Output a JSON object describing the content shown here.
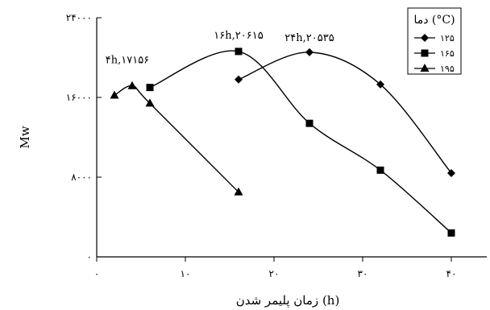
{
  "chart_data": {
    "type": "line",
    "xlabel": "زمان پلیمر شدن (h)",
    "ylabel": "Mw",
    "xlim": [
      0,
      44
    ],
    "ylim": [
      0,
      24000
    ],
    "xticks": [
      0,
      10,
      20,
      30,
      40
    ],
    "yticks": [
      0,
      8000,
      16000,
      24000
    ],
    "xtick_labels": [
      "۰",
      "۱۰",
      "۲۰",
      "۳۰",
      "۴۰"
    ],
    "ytick_labels": [
      "۰",
      "۸۰۰۰",
      "۱۶۰۰۰",
      "۲۴۰۰۰"
    ],
    "grid": false,
    "legend": {
      "title": "دما (°C)",
      "position": "top-right"
    },
    "series": [
      {
        "name": "۱۲۵",
        "marker": "diamond",
        "x": [
          16,
          24,
          32,
          40
        ],
        "y": [
          17800,
          20535,
          17300,
          8400
        ]
      },
      {
        "name": "۱۶۵",
        "marker": "square",
        "x": [
          6,
          16,
          24,
          32,
          40
        ],
        "y": [
          17000,
          20615,
          13400,
          8700,
          2400
        ]
      },
      {
        "name": "۱۹۵",
        "marker": "triangle",
        "x": [
          2,
          4,
          6,
          16
        ],
        "y": [
          16200,
          17156,
          15400,
          6500
        ]
      }
    ],
    "annotations": [
      {
        "text": "۴h,۱۷۱۵۶",
        "x": 4,
        "y": 17156
      },
      {
        "text": "۱۶h,۲۰۶۱۵",
        "x": 16,
        "y": 20615
      },
      {
        "text": "۲۴h,۲۰۵۳۵",
        "x": 24,
        "y": 20535
      }
    ]
  }
}
